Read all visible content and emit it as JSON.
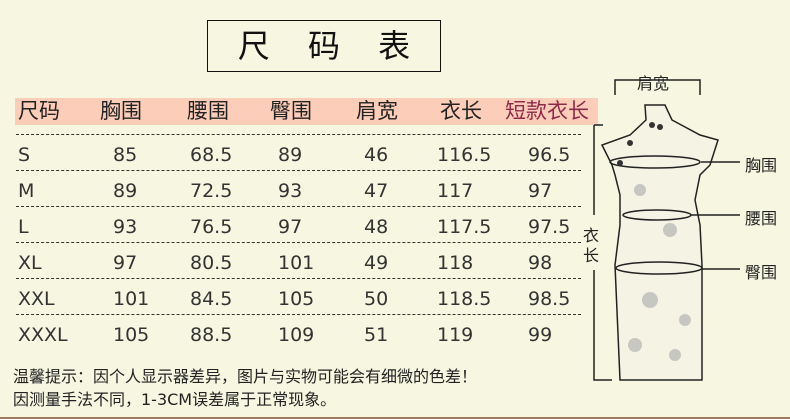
{
  "title": "尺 码 表",
  "table": {
    "headers": [
      "尺码",
      "胸围",
      "腰围",
      "臀围",
      "肩宽",
      "衣长",
      "短款衣长"
    ],
    "rows": [
      [
        "S",
        "85",
        "68.5",
        "89",
        "46",
        "116.5",
        "96.5"
      ],
      [
        "M",
        "89",
        "72.5",
        "93",
        "47",
        "117",
        "97"
      ],
      [
        "L",
        "93",
        "76.5",
        "97",
        "48",
        "117.5",
        "97.5"
      ],
      [
        "XL",
        "97",
        "80.5",
        "101",
        "49",
        "118",
        "98"
      ],
      [
        "XXL",
        "101",
        "84.5",
        "105",
        "50",
        "118.5",
        "98.5"
      ],
      [
        "XXXL",
        "105",
        "88.5",
        "109",
        "51",
        "119",
        "99"
      ]
    ]
  },
  "diagram": {
    "shoulder": "肩宽",
    "chest": "胸围",
    "waist": "腰围",
    "hip": "臀围",
    "length_top": "衣",
    "length_bottom": "长"
  },
  "notes": [
    "温馨提示：因个人显示器差异，图片与实物可能会有细微的色差！",
    "因测量手法不同，1-3CM误差属于正常现象。"
  ],
  "colors": {
    "background": "#f7f6e1",
    "header_band": "#fccdb9",
    "accent": "#8f2a4a"
  }
}
